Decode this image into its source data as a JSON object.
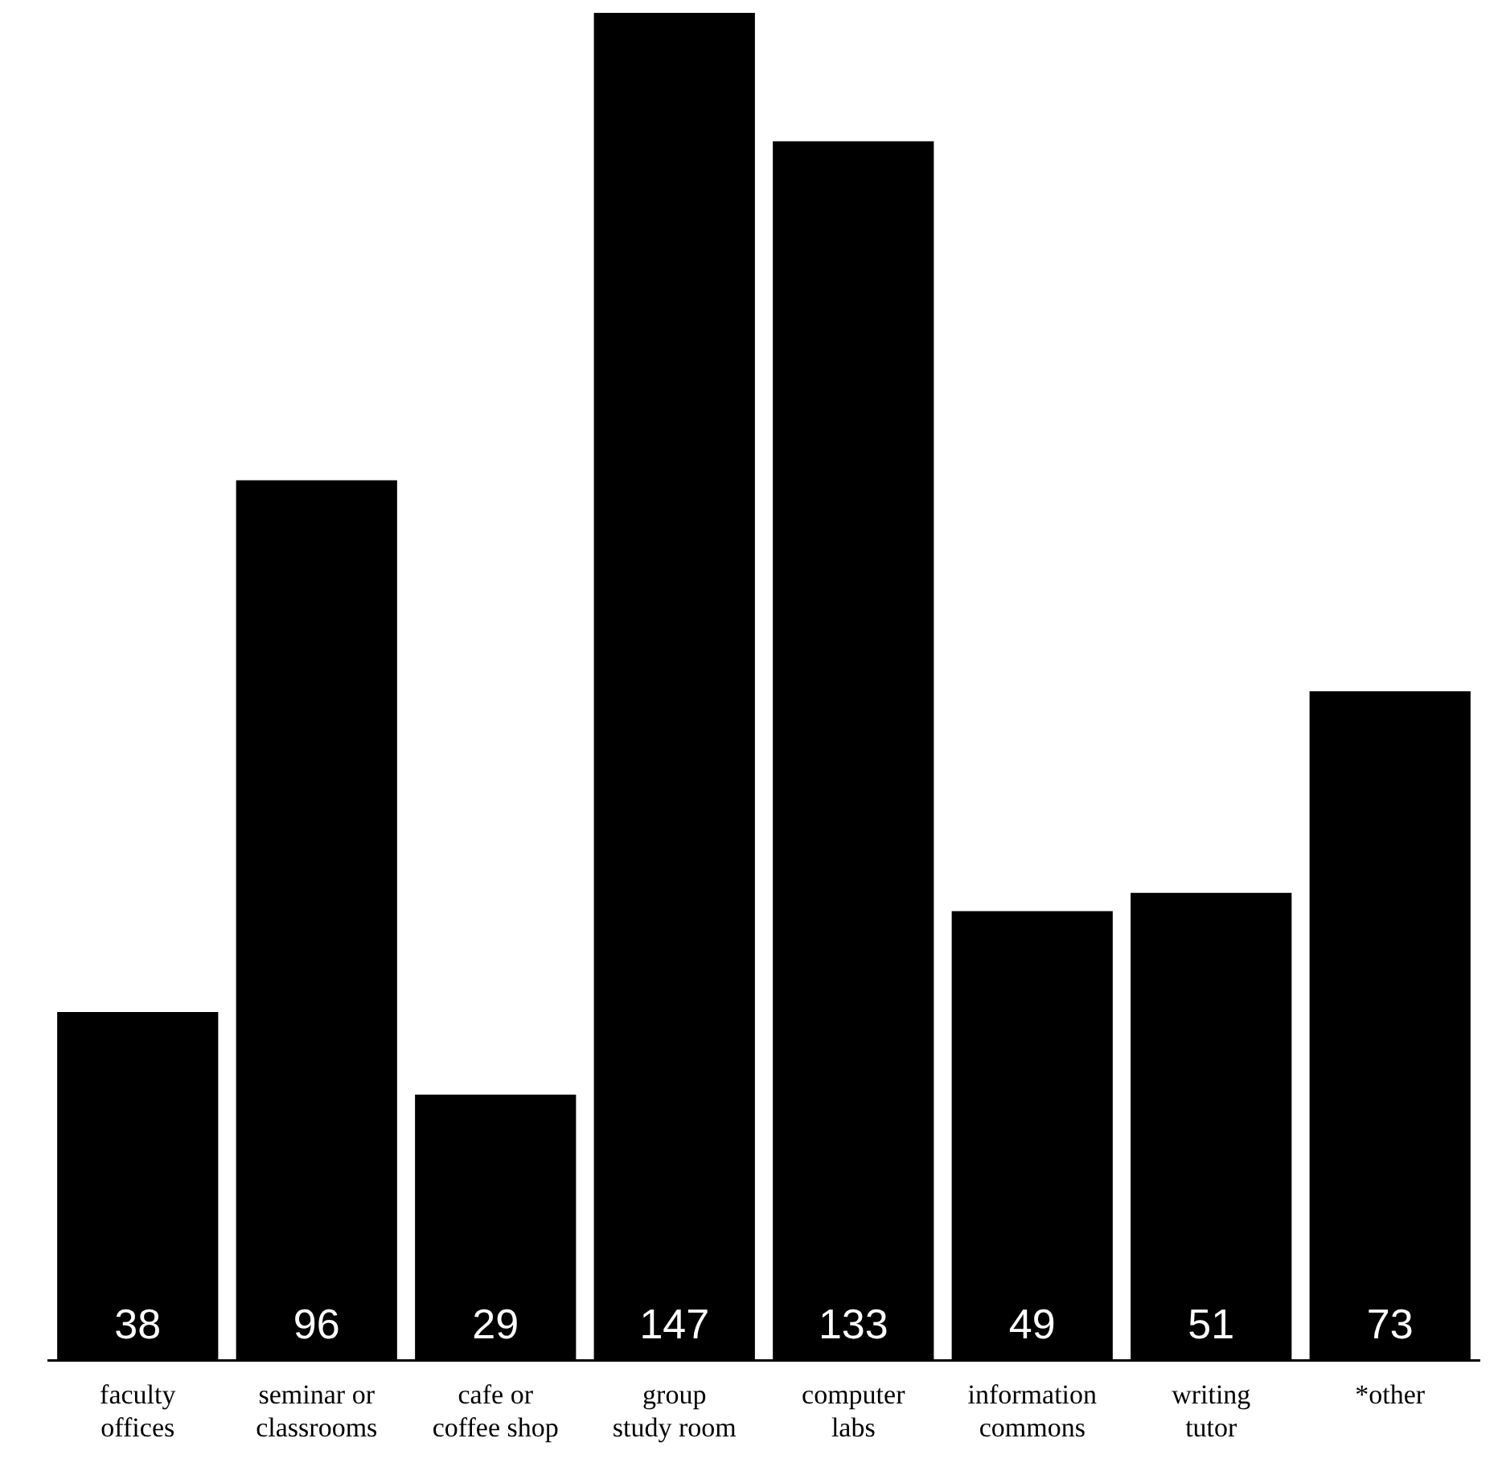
{
  "chart_data": {
    "type": "bar",
    "categories": [
      "faculty offices",
      "seminar or classrooms",
      "cafe or coffee shop",
      "group study room",
      "computer labs",
      "information commons",
      "writing tutor",
      "*other"
    ],
    "values": [
      38,
      96,
      29,
      147,
      133,
      49,
      51,
      73
    ],
    "color": "#000000",
    "data_labels": true,
    "grid": false,
    "legend": false,
    "tick_labels": "x"
  }
}
